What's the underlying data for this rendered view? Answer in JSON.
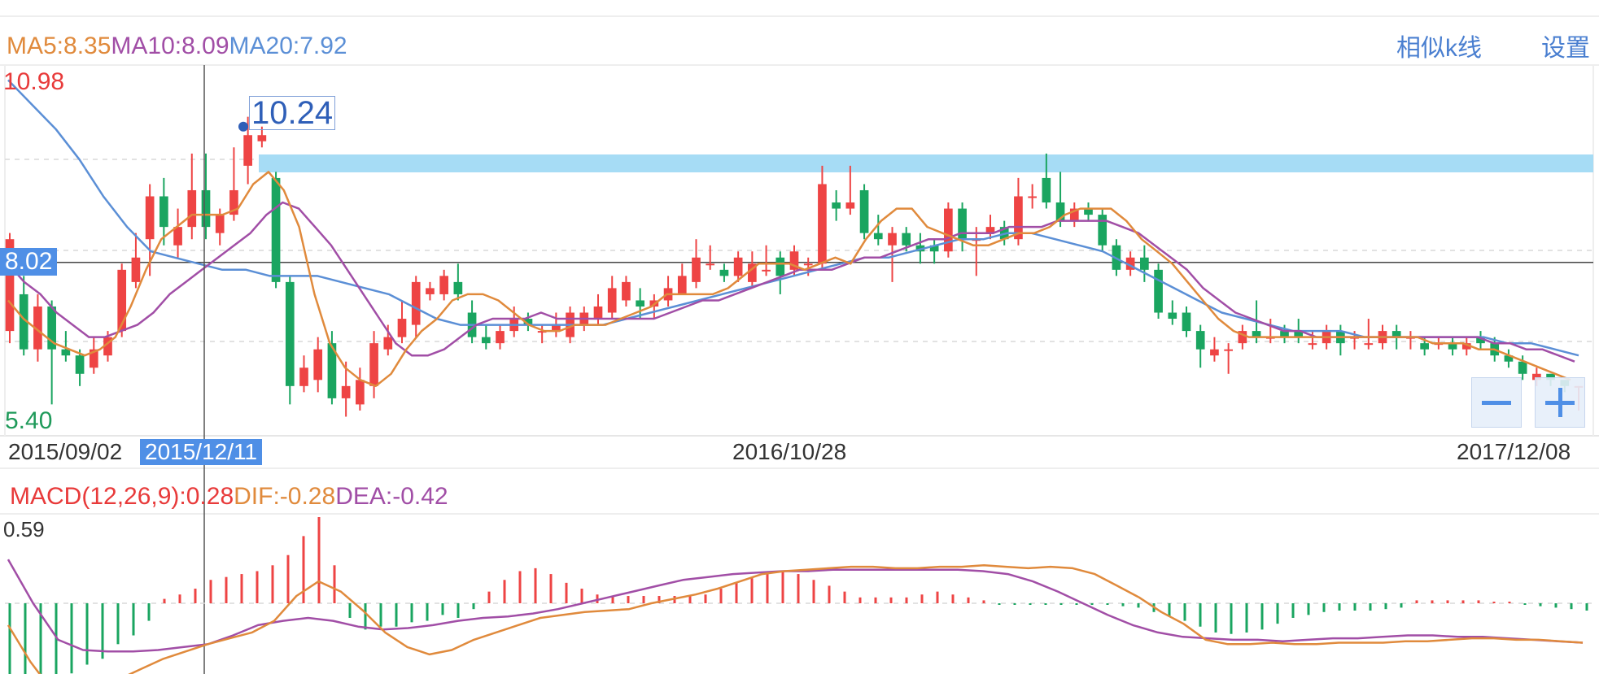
{
  "ma_legend": {
    "ma5": "MA5:8.35",
    "ma10": "MA10:8.09",
    "ma20": "MA20:7.92"
  },
  "actions": {
    "similar_k": "相似k线",
    "settings": "设置"
  },
  "price_axis": {
    "max_label": "10.98",
    "min_label": "5.40",
    "current_label": "8.02"
  },
  "peak_label": "10.24",
  "dates": {
    "start": "2015/09/02",
    "crosshair": "2015/12/11",
    "middle": "2016/10/28",
    "end": "2017/12/08"
  },
  "macd_legend": {
    "macd": "MACD(12,26,9):0.28",
    "dif": "DIF:-0.28",
    "dea": "DEA:-0.42"
  },
  "macd_axis": {
    "max_label": "0.59"
  },
  "colors": {
    "up": "#ee4444",
    "down": "#1aa560",
    "ma5": "#e08a3c",
    "ma10": "#a14ea6",
    "ma20": "#5b8fd6",
    "accent": "#4f8fe6",
    "band": "#a6dcf5"
  },
  "chart_data": {
    "type": "candlestick",
    "ylim": [
      5.4,
      10.98
    ],
    "current_price": 8.02,
    "candles": [
      {
        "o": 6.9,
        "c": 8.4,
        "h": 8.5,
        "l": 6.7
      },
      {
        "o": 7.5,
        "c": 6.6,
        "h": 7.8,
        "l": 6.5
      },
      {
        "o": 6.6,
        "c": 7.3,
        "h": 7.5,
        "l": 6.4
      },
      {
        "o": 7.3,
        "c": 6.6,
        "h": 7.4,
        "l": 5.7
      },
      {
        "o": 6.6,
        "c": 6.5,
        "h": 6.9,
        "l": 6.4
      },
      {
        "o": 6.5,
        "c": 6.2,
        "h": 6.6,
        "l": 6.0
      },
      {
        "o": 6.3,
        "c": 6.6,
        "h": 6.8,
        "l": 6.2
      },
      {
        "o": 6.5,
        "c": 6.8,
        "h": 6.9,
        "l": 6.4
      },
      {
        "o": 6.9,
        "c": 7.9,
        "h": 8.0,
        "l": 6.8
      },
      {
        "o": 7.7,
        "c": 8.1,
        "h": 8.5,
        "l": 7.6
      },
      {
        "o": 8.4,
        "c": 9.1,
        "h": 9.3,
        "l": 7.8
      },
      {
        "o": 9.1,
        "c": 8.6,
        "h": 9.4,
        "l": 8.3
      },
      {
        "o": 8.3,
        "c": 8.6,
        "h": 8.9,
        "l": 8.1
      },
      {
        "o": 8.6,
        "c": 9.2,
        "h": 9.8,
        "l": 8.4
      },
      {
        "o": 9.2,
        "c": 8.6,
        "h": 9.8,
        "l": 8.4
      },
      {
        "o": 8.5,
        "c": 8.8,
        "h": 8.9,
        "l": 8.3
      },
      {
        "o": 8.8,
        "c": 9.2,
        "h": 9.9,
        "l": 8.7
      },
      {
        "o": 9.6,
        "c": 10.1,
        "h": 10.4,
        "l": 9.3
      },
      {
        "o": 10.0,
        "c": 10.1,
        "h": 10.24,
        "l": 9.9
      },
      {
        "o": 9.4,
        "c": 7.7,
        "h": 9.5,
        "l": 7.6
      },
      {
        "o": 7.7,
        "c": 6.0,
        "h": 7.8,
        "l": 5.7
      },
      {
        "o": 6.0,
        "c": 6.3,
        "h": 6.5,
        "l": 5.9
      },
      {
        "o": 6.1,
        "c": 6.6,
        "h": 6.8,
        "l": 5.9
      },
      {
        "o": 6.7,
        "c": 5.8,
        "h": 6.9,
        "l": 5.7
      },
      {
        "o": 5.8,
        "c": 6.0,
        "h": 6.4,
        "l": 5.5
      },
      {
        "o": 5.7,
        "c": 6.1,
        "h": 6.3,
        "l": 5.6
      },
      {
        "o": 6.0,
        "c": 6.7,
        "h": 6.9,
        "l": 5.8
      },
      {
        "o": 6.6,
        "c": 6.8,
        "h": 7.0,
        "l": 6.5
      },
      {
        "o": 6.8,
        "c": 7.1,
        "h": 7.4,
        "l": 6.7
      },
      {
        "o": 7.0,
        "c": 7.7,
        "h": 7.8,
        "l": 6.8
      },
      {
        "o": 7.5,
        "c": 7.6,
        "h": 7.7,
        "l": 7.4
      },
      {
        "o": 7.5,
        "c": 7.8,
        "h": 7.9,
        "l": 7.4
      },
      {
        "o": 7.7,
        "c": 7.5,
        "h": 8.0,
        "l": 7.4
      },
      {
        "o": 7.2,
        "c": 6.8,
        "h": 7.4,
        "l": 6.7
      },
      {
        "o": 6.8,
        "c": 6.7,
        "h": 7.0,
        "l": 6.6
      },
      {
        "o": 6.7,
        "c": 6.9,
        "h": 7.0,
        "l": 6.6
      },
      {
        "o": 6.9,
        "c": 7.1,
        "h": 7.3,
        "l": 6.8
      },
      {
        "o": 7.1,
        "c": 7.0,
        "h": 7.2,
        "l": 6.9
      },
      {
        "o": 6.9,
        "c": 6.9,
        "h": 7.0,
        "l": 6.7
      },
      {
        "o": 6.9,
        "c": 7.0,
        "h": 7.2,
        "l": 6.8
      },
      {
        "o": 6.8,
        "c": 7.2,
        "h": 7.3,
        "l": 6.7
      },
      {
        "o": 7.0,
        "c": 7.2,
        "h": 7.3,
        "l": 6.9
      },
      {
        "o": 7.1,
        "c": 7.3,
        "h": 7.5,
        "l": 7.0
      },
      {
        "o": 7.2,
        "c": 7.6,
        "h": 7.8,
        "l": 7.1
      },
      {
        "o": 7.4,
        "c": 7.7,
        "h": 7.8,
        "l": 7.3
      },
      {
        "o": 7.4,
        "c": 7.3,
        "h": 7.6,
        "l": 7.1
      },
      {
        "o": 7.3,
        "c": 7.4,
        "h": 7.5,
        "l": 7.1
      },
      {
        "o": 7.4,
        "c": 7.6,
        "h": 7.8,
        "l": 7.3
      },
      {
        "o": 7.5,
        "c": 7.8,
        "h": 8.0,
        "l": 7.5
      },
      {
        "o": 7.7,
        "c": 8.1,
        "h": 8.4,
        "l": 7.6
      },
      {
        "o": 8.0,
        "c": 8.0,
        "h": 8.3,
        "l": 7.9
      },
      {
        "o": 7.9,
        "c": 7.8,
        "h": 8.0,
        "l": 7.7
      },
      {
        "o": 7.8,
        "c": 8.1,
        "h": 8.2,
        "l": 7.7
      },
      {
        "o": 7.7,
        "c": 8.0,
        "h": 8.2,
        "l": 7.6
      },
      {
        "o": 7.9,
        "c": 7.9,
        "h": 8.3,
        "l": 7.8
      },
      {
        "o": 8.1,
        "c": 7.8,
        "h": 8.2,
        "l": 7.5
      },
      {
        "o": 7.9,
        "c": 8.2,
        "h": 8.3,
        "l": 7.8
      },
      {
        "o": 8.0,
        "c": 8.0,
        "h": 8.1,
        "l": 7.8
      },
      {
        "o": 8.0,
        "c": 9.3,
        "h": 9.6,
        "l": 7.9
      },
      {
        "o": 9.0,
        "c": 8.9,
        "h": 9.2,
        "l": 8.7
      },
      {
        "o": 8.9,
        "c": 9.0,
        "h": 9.6,
        "l": 8.8
      },
      {
        "o": 9.2,
        "c": 8.5,
        "h": 9.3,
        "l": 8.4
      },
      {
        "o": 8.5,
        "c": 8.4,
        "h": 8.8,
        "l": 8.3
      },
      {
        "o": 8.3,
        "c": 8.5,
        "h": 8.6,
        "l": 7.7
      },
      {
        "o": 8.5,
        "c": 8.3,
        "h": 8.6,
        "l": 8.2
      },
      {
        "o": 8.3,
        "c": 8.2,
        "h": 8.5,
        "l": 8.0
      },
      {
        "o": 8.3,
        "c": 8.2,
        "h": 8.4,
        "l": 8.0
      },
      {
        "o": 8.2,
        "c": 8.9,
        "h": 9.0,
        "l": 8.1
      },
      {
        "o": 8.9,
        "c": 8.4,
        "h": 9.0,
        "l": 8.2
      },
      {
        "o": 8.4,
        "c": 8.4,
        "h": 8.6,
        "l": 7.8
      },
      {
        "o": 8.5,
        "c": 8.6,
        "h": 8.8,
        "l": 8.4
      },
      {
        "o": 8.6,
        "c": 8.4,
        "h": 8.7,
        "l": 8.3
      },
      {
        "o": 8.4,
        "c": 9.1,
        "h": 9.4,
        "l": 8.3
      },
      {
        "o": 9.1,
        "c": 9.1,
        "h": 9.3,
        "l": 8.9
      },
      {
        "o": 9.4,
        "c": 9.0,
        "h": 9.8,
        "l": 8.9
      },
      {
        "o": 9.0,
        "c": 8.7,
        "h": 9.5,
        "l": 8.6
      },
      {
        "o": 8.7,
        "c": 8.9,
        "h": 9.0,
        "l": 8.6
      },
      {
        "o": 8.9,
        "c": 8.8,
        "h": 9.0,
        "l": 8.7
      },
      {
        "o": 8.8,
        "c": 8.3,
        "h": 8.9,
        "l": 8.2
      },
      {
        "o": 8.3,
        "c": 7.9,
        "h": 8.4,
        "l": 7.8
      },
      {
        "o": 7.9,
        "c": 8.1,
        "h": 8.2,
        "l": 7.8
      },
      {
        "o": 8.1,
        "c": 7.9,
        "h": 8.3,
        "l": 7.7
      },
      {
        "o": 7.9,
        "c": 7.2,
        "h": 8.0,
        "l": 7.1
      },
      {
        "o": 7.2,
        "c": 7.1,
        "h": 7.4,
        "l": 7.0
      },
      {
        "o": 7.2,
        "c": 6.9,
        "h": 7.3,
        "l": 6.8
      },
      {
        "o": 6.9,
        "c": 6.6,
        "h": 7.0,
        "l": 6.3
      },
      {
        "o": 6.5,
        "c": 6.6,
        "h": 6.8,
        "l": 6.4
      },
      {
        "o": 6.6,
        "c": 6.6,
        "h": 6.7,
        "l": 6.2
      },
      {
        "o": 6.7,
        "c": 6.9,
        "h": 7.0,
        "l": 6.6
      },
      {
        "o": 6.9,
        "c": 6.8,
        "h": 7.4,
        "l": 6.7
      },
      {
        "o": 6.8,
        "c": 6.8,
        "h": 7.1,
        "l": 6.7
      },
      {
        "o": 6.9,
        "c": 6.8,
        "h": 7.0,
        "l": 6.7
      },
      {
        "o": 6.9,
        "c": 6.8,
        "h": 7.1,
        "l": 6.7
      },
      {
        "o": 6.7,
        "c": 6.7,
        "h": 6.9,
        "l": 6.6
      },
      {
        "o": 6.7,
        "c": 6.9,
        "h": 7.0,
        "l": 6.6
      },
      {
        "o": 6.9,
        "c": 6.7,
        "h": 7.0,
        "l": 6.5
      },
      {
        "o": 6.8,
        "c": 6.8,
        "h": 6.9,
        "l": 6.6
      },
      {
        "o": 6.7,
        "c": 6.7,
        "h": 7.1,
        "l": 6.6
      },
      {
        "o": 6.7,
        "c": 6.9,
        "h": 7.0,
        "l": 6.6
      },
      {
        "o": 6.9,
        "c": 6.8,
        "h": 7.0,
        "l": 6.6
      },
      {
        "o": 6.8,
        "c": 6.8,
        "h": 6.9,
        "l": 6.6
      },
      {
        "o": 6.7,
        "c": 6.6,
        "h": 6.8,
        "l": 6.5
      },
      {
        "o": 6.7,
        "c": 6.7,
        "h": 6.8,
        "l": 6.6
      },
      {
        "o": 6.7,
        "c": 6.6,
        "h": 6.8,
        "l": 6.5
      },
      {
        "o": 6.6,
        "c": 6.7,
        "h": 6.8,
        "l": 6.5
      },
      {
        "o": 6.8,
        "c": 6.7,
        "h": 6.9,
        "l": 6.6
      },
      {
        "o": 6.7,
        "c": 6.5,
        "h": 6.8,
        "l": 6.4
      },
      {
        "o": 6.5,
        "c": 6.4,
        "h": 6.6,
        "l": 6.3
      },
      {
        "o": 6.4,
        "c": 6.2,
        "h": 6.5,
        "l": 6.1
      },
      {
        "o": 6.1,
        "c": 6.2,
        "h": 6.3,
        "l": 6.0
      },
      {
        "o": 6.2,
        "c": 6.1,
        "h": 6.2,
        "l": 6.0
      },
      {
        "o": 6.1,
        "c": 6.0,
        "h": 6.1,
        "l": 5.9
      },
      {
        "o": 6.0,
        "c": 6.0,
        "h": 6.0,
        "l": 5.6
      }
    ],
    "ma5": [
      7.4,
      7.1,
      6.9,
      6.7,
      6.6,
      6.5,
      6.6,
      6.8,
      7.3,
      7.9,
      8.4,
      8.6,
      8.8,
      8.8,
      8.8,
      8.9,
      9.3,
      9.5,
      9.2,
      8.6,
      7.5,
      6.7,
      6.3,
      6.1,
      6.0,
      6.2,
      6.6,
      6.9,
      7.1,
      7.4,
      7.5,
      7.5,
      7.4,
      7.2,
      7.0,
      6.9,
      6.9,
      7.0,
      7.0,
      7.0,
      7.1,
      7.2,
      7.3,
      7.5,
      7.5,
      7.5,
      7.5,
      7.6,
      7.8,
      8.0,
      8.0,
      8.0,
      7.9,
      8.0,
      8.1,
      8.0,
      8.4,
      8.7,
      8.9,
      8.9,
      8.6,
      8.5,
      8.4,
      8.3,
      8.3,
      8.4,
      8.5,
      8.5,
      8.6,
      8.8,
      8.9,
      8.9,
      8.9,
      8.7,
      8.4,
      8.2,
      8.0,
      7.7,
      7.4,
      7.1,
      6.9,
      6.8,
      6.8,
      6.8,
      6.8,
      6.8,
      6.8,
      6.8,
      6.8,
      6.8,
      6.8,
      6.8,
      6.8,
      6.7,
      6.7,
      6.7,
      6.6,
      6.6,
      6.5,
      6.4,
      6.3,
      6.2,
      6.1
    ],
    "ma10": [
      8.0,
      7.7,
      7.5,
      7.2,
      7.0,
      6.8,
      6.8,
      6.9,
      7.0,
      7.2,
      7.5,
      7.7,
      7.9,
      8.1,
      8.3,
      8.5,
      8.8,
      9.0,
      8.9,
      8.6,
      8.3,
      7.9,
      7.5,
      7.1,
      6.7,
      6.5,
      6.5,
      6.6,
      6.8,
      7.0,
      7.1,
      7.1,
      7.1,
      7.2,
      7.1,
      7.1,
      7.1,
      7.1,
      7.1,
      7.1,
      7.1,
      7.2,
      7.3,
      7.4,
      7.4,
      7.5,
      7.6,
      7.7,
      7.8,
      7.9,
      7.9,
      7.9,
      8.0,
      8.1,
      8.1,
      8.2,
      8.3,
      8.4,
      8.4,
      8.5,
      8.5,
      8.5,
      8.6,
      8.6,
      8.6,
      8.7,
      8.7,
      8.7,
      8.7,
      8.6,
      8.5,
      8.3,
      8.1,
      7.9,
      7.6,
      7.4,
      7.2,
      7.1,
      7.0,
      6.9,
      6.9,
      6.8,
      6.8,
      6.8,
      6.8,
      6.8,
      6.8,
      6.8,
      6.8,
      6.8,
      6.8,
      6.8,
      6.7,
      6.7,
      6.6,
      6.6,
      6.5,
      6.4
    ],
    "ma20": [
      11.0,
      10.6,
      10.2,
      9.7,
      9.1,
      8.6,
      8.2,
      8.1,
      8.0,
      7.9,
      7.9,
      7.8,
      7.8,
      7.8,
      7.7,
      7.6,
      7.5,
      7.3,
      7.1,
      7.0,
      7.0,
      7.0,
      7.0,
      7.0,
      7.0,
      7.0,
      7.1,
      7.2,
      7.3,
      7.4,
      7.5,
      7.6,
      7.7,
      7.8,
      7.9,
      8.0,
      8.1,
      8.1,
      8.2,
      8.3,
      8.4,
      8.4,
      8.5,
      8.5,
      8.4,
      8.3,
      8.2,
      8.0,
      7.8,
      7.6,
      7.4,
      7.2,
      7.1,
      7.0,
      6.9,
      6.9,
      6.9,
      6.8,
      6.8,
      6.8,
      6.8,
      6.8,
      6.8,
      6.7,
      6.7,
      6.6,
      6.5
    ],
    "macd": {
      "hist": [
        -0.55,
        -0.55,
        -0.55,
        -0.5,
        -0.48,
        -0.42,
        -0.38,
        -0.28,
        -0.22,
        -0.12,
        0.03,
        0.06,
        0.1,
        0.16,
        0.18,
        0.2,
        0.22,
        0.26,
        0.33,
        0.46,
        0.59,
        0.26,
        -0.1,
        -0.18,
        -0.16,
        -0.16,
        -0.13,
        -0.12,
        -0.08,
        -0.1,
        -0.04,
        0.08,
        0.16,
        0.22,
        0.24,
        0.2,
        0.14,
        0.1,
        0.06,
        0.05,
        0.05,
        0.05,
        0.05,
        0.05,
        0.05,
        0.06,
        0.1,
        0.14,
        0.18,
        0.2,
        0.22,
        0.2,
        0.16,
        0.12,
        0.08,
        0.04,
        0.04,
        0.04,
        0.04,
        0.06,
        0.08,
        0.06,
        0.04,
        0.02,
        -0.01,
        -0.01,
        -0.01,
        -0.01,
        -0.01,
        -0.01,
        -0.01,
        -0.01,
        -0.02,
        -0.03,
        -0.06,
        -0.09,
        -0.12,
        -0.16,
        -0.2,
        -0.21,
        -0.2,
        -0.18,
        -0.14,
        -0.1,
        -0.08,
        -0.06,
        -0.05,
        -0.05,
        -0.05,
        -0.04,
        -0.03,
        0.02,
        0.02,
        0.02,
        0.02,
        0.02,
        0.01,
        0.0,
        -0.01,
        -0.02,
        -0.03,
        -0.04,
        -0.05
      ],
      "dif": [
        -0.15,
        -0.4,
        -0.6,
        -0.65,
        -0.6,
        -0.52,
        -0.45,
        -0.38,
        -0.33,
        -0.28,
        -0.24,
        -0.2,
        -0.12,
        0.05,
        0.15,
        0.08,
        -0.05,
        -0.2,
        -0.3,
        -0.35,
        -0.32,
        -0.25,
        -0.2,
        -0.15,
        -0.1,
        -0.08,
        -0.06,
        -0.05,
        -0.04,
        0.0,
        0.03,
        0.06,
        0.1,
        0.15,
        0.2,
        0.22,
        0.23,
        0.24,
        0.25,
        0.25,
        0.24,
        0.24,
        0.25,
        0.25,
        0.26,
        0.25,
        0.24,
        0.25,
        0.24,
        0.2,
        0.12,
        0.04,
        -0.06,
        -0.14,
        -0.25,
        -0.28,
        -0.28,
        -0.27,
        -0.28,
        -0.28,
        -0.27,
        -0.27,
        -0.27,
        -0.26,
        -0.26,
        -0.25,
        -0.24,
        -0.24,
        -0.25,
        -0.25,
        -0.26,
        -0.27
      ],
      "dea": [
        0.3,
        0.0,
        -0.25,
        -0.32,
        -0.33,
        -0.33,
        -0.32,
        -0.3,
        -0.28,
        -0.22,
        -0.15,
        -0.12,
        -0.1,
        -0.12,
        -0.16,
        -0.18,
        -0.17,
        -0.15,
        -0.12,
        -0.1,
        -0.09,
        -0.07,
        -0.04,
        0.0,
        0.04,
        0.08,
        0.12,
        0.16,
        0.18,
        0.2,
        0.21,
        0.22,
        0.22,
        0.23,
        0.23,
        0.23,
        0.23,
        0.23,
        0.23,
        0.22,
        0.2,
        0.15,
        0.08,
        0.0,
        -0.08,
        -0.15,
        -0.2,
        -0.23,
        -0.24,
        -0.25,
        -0.25,
        -0.26,
        -0.25,
        -0.24,
        -0.24,
        -0.23,
        -0.22,
        -0.22,
        -0.23,
        -0.23,
        -0.24,
        -0.25,
        -0.26,
        -0.27
      ]
    }
  }
}
